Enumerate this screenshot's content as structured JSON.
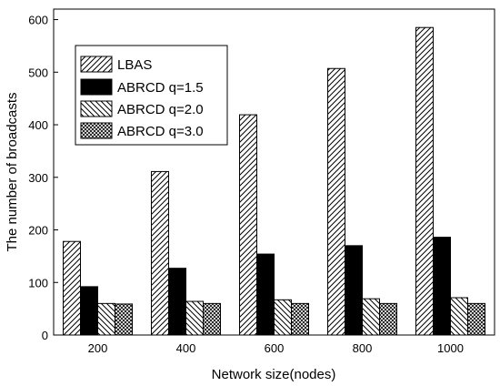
{
  "chart_data": {
    "type": "bar",
    "xlabel": "Network size(nodes)",
    "ylabel": "The number of broadcasts",
    "categories": [
      "200",
      "400",
      "600",
      "800",
      "1000"
    ],
    "ylim": [
      0,
      620
    ],
    "yticks": [
      "0",
      "100",
      "200",
      "300",
      "400",
      "500",
      "600"
    ],
    "legend_position": "top-left",
    "grid": false,
    "series": [
      {
        "name": "LBAS",
        "pattern": "diagonal-hatch",
        "values": [
          178,
          311,
          419,
          507,
          585
        ]
      },
      {
        "name": "ABRCD q=1.5",
        "pattern": "solid-black",
        "values": [
          92,
          127,
          154,
          170,
          186
        ]
      },
      {
        "name": "ABRCD q=2.0",
        "pattern": "back-diagonal-hatch",
        "values": [
          60,
          64,
          67,
          69,
          71
        ]
      },
      {
        "name": "ABRCD q=3.0",
        "pattern": "crosshatch",
        "values": [
          59,
          60,
          60,
          60,
          60
        ]
      }
    ]
  }
}
